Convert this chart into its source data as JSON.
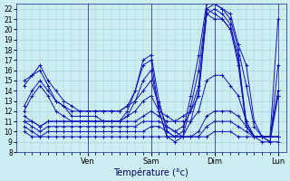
{
  "background_color": "#cceef2",
  "grid_color": "#99ccd4",
  "line_color": "#1111bb",
  "xlabel": "Température (°c)",
  "ylim": [
    8,
    22.5
  ],
  "yticks": [
    8,
    9,
    10,
    11,
    12,
    13,
    14,
    15,
    16,
    17,
    18,
    19,
    20,
    21,
    22
  ],
  "day_positions": [
    0,
    8,
    16,
    24,
    32
  ],
  "xtick_labels": [
    "Ven",
    "Sam",
    "Dim",
    "Lun"
  ],
  "series": [
    [
      14.5,
      15.5,
      16.0,
      14.5,
      13.0,
      12.5,
      11.5,
      11.5,
      11.5,
      11.5,
      11.0,
      11.0,
      11.0,
      12.0,
      14.0,
      16.5,
      17.0,
      12.0,
      9.5,
      9.0,
      9.5,
      12.5,
      16.0,
      22.0,
      21.5,
      21.0,
      20.0,
      17.5,
      10.5,
      9.5,
      9.5,
      9.5,
      14.0
    ],
    [
      12.0,
      13.5,
      14.5,
      13.5,
      12.0,
      11.5,
      11.0,
      11.0,
      11.0,
      11.0,
      11.0,
      11.0,
      11.0,
      11.5,
      13.0,
      15.0,
      16.0,
      12.0,
      9.5,
      9.5,
      9.5,
      11.0,
      14.0,
      21.5,
      21.0,
      21.0,
      20.0,
      16.5,
      10.5,
      9.5,
      9.5,
      9.5,
      13.5
    ],
    [
      11.5,
      11.0,
      10.5,
      11.0,
      11.0,
      11.0,
      11.0,
      11.0,
      11.0,
      11.0,
      11.0,
      11.0,
      11.0,
      11.0,
      11.0,
      11.5,
      12.0,
      11.5,
      11.0,
      11.0,
      11.0,
      11.0,
      12.0,
      15.0,
      15.5,
      15.5,
      14.5,
      13.5,
      11.0,
      9.5,
      9.0,
      9.0,
      9.0
    ],
    [
      11.0,
      10.5,
      10.0,
      10.5,
      10.5,
      10.5,
      10.5,
      10.5,
      10.5,
      10.5,
      10.5,
      10.5,
      10.5,
      10.5,
      10.5,
      11.0,
      11.0,
      11.0,
      10.5,
      10.0,
      9.5,
      9.5,
      10.0,
      11.5,
      12.0,
      12.0,
      12.0,
      11.5,
      10.5,
      9.5,
      9.5,
      9.5,
      9.5
    ],
    [
      10.5,
      10.0,
      9.5,
      10.0,
      10.0,
      10.0,
      10.0,
      10.0,
      10.0,
      10.0,
      10.0,
      10.0,
      10.0,
      10.0,
      10.0,
      10.0,
      10.5,
      10.5,
      10.0,
      9.5,
      9.5,
      9.5,
      9.5,
      10.5,
      11.0,
      11.0,
      11.0,
      10.5,
      10.0,
      9.5,
      9.5,
      9.5,
      9.5
    ],
    [
      10.0,
      9.5,
      9.5,
      9.5,
      9.5,
      9.5,
      9.5,
      9.5,
      9.5,
      9.5,
      9.5,
      9.5,
      9.5,
      9.5,
      9.5,
      9.5,
      9.5,
      9.5,
      9.5,
      9.5,
      9.5,
      9.5,
      9.5,
      9.5,
      10.0,
      10.0,
      10.0,
      9.5,
      9.5,
      9.5,
      9.5,
      9.5,
      9.5
    ],
    [
      11.0,
      11.0,
      10.5,
      11.0,
      11.0,
      11.0,
      11.0,
      11.0,
      11.0,
      11.0,
      11.0,
      11.0,
      11.0,
      11.5,
      12.0,
      13.0,
      13.5,
      12.0,
      11.5,
      11.0,
      11.5,
      12.0,
      13.5,
      21.5,
      22.0,
      21.5,
      20.5,
      17.0,
      11.0,
      9.5,
      9.5,
      9.5,
      21.0
    ],
    [
      12.5,
      14.0,
      15.0,
      14.0,
      13.0,
      12.5,
      12.0,
      12.0,
      12.0,
      12.0,
      12.0,
      12.0,
      12.0,
      12.5,
      13.0,
      14.0,
      15.0,
      12.5,
      10.5,
      10.0,
      10.5,
      12.0,
      14.5,
      22.0,
      22.5,
      22.0,
      21.0,
      18.0,
      14.5,
      10.5,
      9.5,
      9.0,
      13.5
    ],
    [
      15.0,
      15.5,
      16.5,
      15.0,
      14.0,
      13.0,
      12.5,
      12.0,
      12.0,
      12.0,
      12.0,
      12.0,
      12.0,
      12.5,
      14.0,
      17.0,
      17.5,
      13.0,
      10.0,
      9.5,
      10.0,
      13.5,
      17.5,
      22.5,
      22.5,
      22.0,
      21.5,
      18.5,
      16.5,
      11.0,
      9.5,
      9.0,
      16.5
    ]
  ],
  "n_points": 33,
  "xlim_start": 0,
  "xlim_end": 32
}
